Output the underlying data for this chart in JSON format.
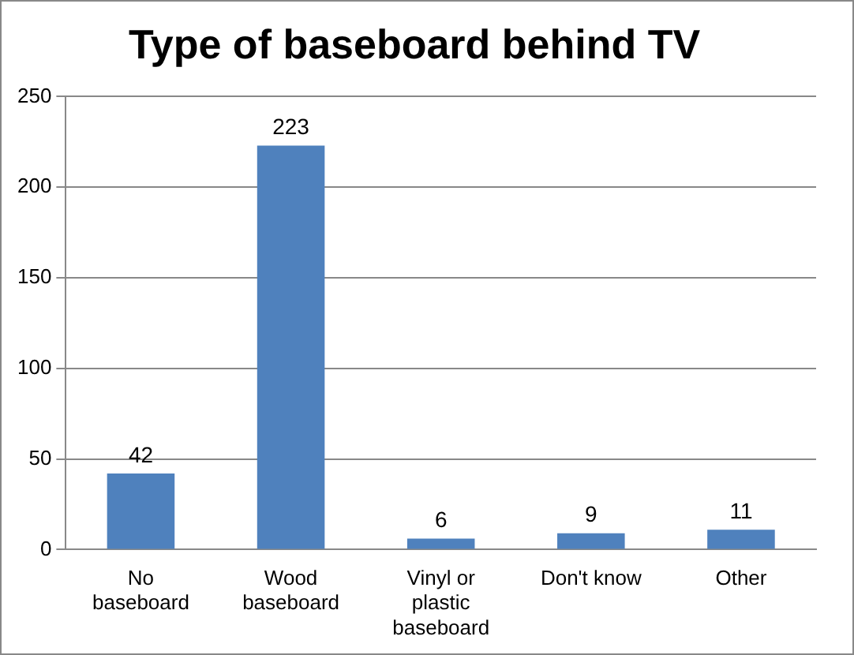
{
  "chart_data": {
    "type": "bar",
    "title": "Type of baseboard behind TV",
    "categories": [
      "No baseboard",
      "Wood baseboard",
      "Vinyl or plastic baseboard",
      "Don't know",
      "Other"
    ],
    "values": [
      42,
      223,
      6,
      9,
      11
    ],
    "color": "#4f81bd",
    "ylim": [
      0,
      250
    ],
    "yticks": [
      0,
      50,
      100,
      150,
      200,
      250
    ],
    "grid": "y",
    "data_labels": true,
    "legend": false
  }
}
